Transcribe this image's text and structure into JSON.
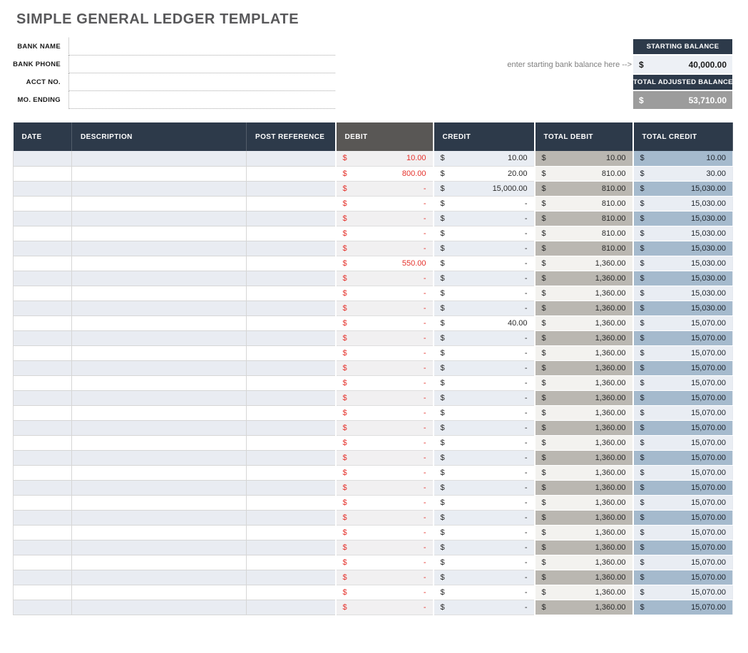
{
  "page": {
    "title": "SIMPLE GENERAL LEDGER TEMPLATE"
  },
  "form": {
    "fields": [
      {
        "label": "BANK NAME",
        "value": ""
      },
      {
        "label": "BANK PHONE",
        "value": ""
      },
      {
        "label": "ACCT NO.",
        "value": ""
      },
      {
        "label": "MO. ENDING",
        "value": ""
      }
    ]
  },
  "balance": {
    "note": "enter starting bank balance here -->",
    "starting": {
      "label": "STARTING BALANCE",
      "currency": "$",
      "value": "40,000.00"
    },
    "adjusted": {
      "label": "TOTAL ADJUSTED BALANCE",
      "currency": "$",
      "value": "53,710.00"
    }
  },
  "colors": {
    "header_navy": "#2d3a4a",
    "header_gray": "#595755",
    "debit_red": "#e5312b",
    "row_tint": "#e9ecf2",
    "total_debit_odd": "#bab7b1",
    "total_debit_even": "#f3f2ef",
    "total_credit_odd": "#a5bacd",
    "total_credit_even": "#e9edf3",
    "adjusted_gray": "#9c9c9c",
    "starting_bg": "#edf0f5"
  },
  "table": {
    "headers": [
      "DATE",
      "DESCRIPTION",
      "POST REFERENCE",
      "DEBIT",
      "CREDIT",
      "TOTAL DEBIT",
      "TOTAL CREDIT"
    ],
    "currency": "$",
    "rows": [
      {
        "date": "",
        "description": "",
        "post_reference": "",
        "debit": "10.00",
        "credit": "10.00",
        "total_debit": "10.00",
        "total_credit": "10.00"
      },
      {
        "date": "",
        "description": "",
        "post_reference": "",
        "debit": "800.00",
        "credit": "20.00",
        "total_debit": "810.00",
        "total_credit": "30.00"
      },
      {
        "date": "",
        "description": "",
        "post_reference": "",
        "debit": "-",
        "credit": "15,000.00",
        "total_debit": "810.00",
        "total_credit": "15,030.00"
      },
      {
        "date": "",
        "description": "",
        "post_reference": "",
        "debit": "-",
        "credit": "-",
        "total_debit": "810.00",
        "total_credit": "15,030.00"
      },
      {
        "date": "",
        "description": "",
        "post_reference": "",
        "debit": "-",
        "credit": "-",
        "total_debit": "810.00",
        "total_credit": "15,030.00"
      },
      {
        "date": "",
        "description": "",
        "post_reference": "",
        "debit": "-",
        "credit": "-",
        "total_debit": "810.00",
        "total_credit": "15,030.00"
      },
      {
        "date": "",
        "description": "",
        "post_reference": "",
        "debit": "-",
        "credit": "-",
        "total_debit": "810.00",
        "total_credit": "15,030.00"
      },
      {
        "date": "",
        "description": "",
        "post_reference": "",
        "debit": "550.00",
        "credit": "-",
        "total_debit": "1,360.00",
        "total_credit": "15,030.00"
      },
      {
        "date": "",
        "description": "",
        "post_reference": "",
        "debit": "-",
        "credit": "-",
        "total_debit": "1,360.00",
        "total_credit": "15,030.00"
      },
      {
        "date": "",
        "description": "",
        "post_reference": "",
        "debit": "-",
        "credit": "-",
        "total_debit": "1,360.00",
        "total_credit": "15,030.00"
      },
      {
        "date": "",
        "description": "",
        "post_reference": "",
        "debit": "-",
        "credit": "-",
        "total_debit": "1,360.00",
        "total_credit": "15,030.00"
      },
      {
        "date": "",
        "description": "",
        "post_reference": "",
        "debit": "-",
        "credit": "40.00",
        "total_debit": "1,360.00",
        "total_credit": "15,070.00"
      },
      {
        "date": "",
        "description": "",
        "post_reference": "",
        "debit": "-",
        "credit": "-",
        "total_debit": "1,360.00",
        "total_credit": "15,070.00"
      },
      {
        "date": "",
        "description": "",
        "post_reference": "",
        "debit": "-",
        "credit": "-",
        "total_debit": "1,360.00",
        "total_credit": "15,070.00"
      },
      {
        "date": "",
        "description": "",
        "post_reference": "",
        "debit": "-",
        "credit": "-",
        "total_debit": "1,360.00",
        "total_credit": "15,070.00"
      },
      {
        "date": "",
        "description": "",
        "post_reference": "",
        "debit": "-",
        "credit": "-",
        "total_debit": "1,360.00",
        "total_credit": "15,070.00"
      },
      {
        "date": "",
        "description": "",
        "post_reference": "",
        "debit": "-",
        "credit": "-",
        "total_debit": "1,360.00",
        "total_credit": "15,070.00"
      },
      {
        "date": "",
        "description": "",
        "post_reference": "",
        "debit": "-",
        "credit": "-",
        "total_debit": "1,360.00",
        "total_credit": "15,070.00"
      },
      {
        "date": "",
        "description": "",
        "post_reference": "",
        "debit": "-",
        "credit": "-",
        "total_debit": "1,360.00",
        "total_credit": "15,070.00"
      },
      {
        "date": "",
        "description": "",
        "post_reference": "",
        "debit": "-",
        "credit": "-",
        "total_debit": "1,360.00",
        "total_credit": "15,070.00"
      },
      {
        "date": "",
        "description": "",
        "post_reference": "",
        "debit": "-",
        "credit": "-",
        "total_debit": "1,360.00",
        "total_credit": "15,070.00"
      },
      {
        "date": "",
        "description": "",
        "post_reference": "",
        "debit": "-",
        "credit": "-",
        "total_debit": "1,360.00",
        "total_credit": "15,070.00"
      },
      {
        "date": "",
        "description": "",
        "post_reference": "",
        "debit": "-",
        "credit": "-",
        "total_debit": "1,360.00",
        "total_credit": "15,070.00"
      },
      {
        "date": "",
        "description": "",
        "post_reference": "",
        "debit": "-",
        "credit": "-",
        "total_debit": "1,360.00",
        "total_credit": "15,070.00"
      },
      {
        "date": "",
        "description": "",
        "post_reference": "",
        "debit": "-",
        "credit": "-",
        "total_debit": "1,360.00",
        "total_credit": "15,070.00"
      },
      {
        "date": "",
        "description": "",
        "post_reference": "",
        "debit": "-",
        "credit": "-",
        "total_debit": "1,360.00",
        "total_credit": "15,070.00"
      },
      {
        "date": "",
        "description": "",
        "post_reference": "",
        "debit": "-",
        "credit": "-",
        "total_debit": "1,360.00",
        "total_credit": "15,070.00"
      },
      {
        "date": "",
        "description": "",
        "post_reference": "",
        "debit": "-",
        "credit": "-",
        "total_debit": "1,360.00",
        "total_credit": "15,070.00"
      },
      {
        "date": "",
        "description": "",
        "post_reference": "",
        "debit": "-",
        "credit": "-",
        "total_debit": "1,360.00",
        "total_credit": "15,070.00"
      },
      {
        "date": "",
        "description": "",
        "post_reference": "",
        "debit": "-",
        "credit": "-",
        "total_debit": "1,360.00",
        "total_credit": "15,070.00"
      },
      {
        "date": "",
        "description": "",
        "post_reference": "",
        "debit": "-",
        "credit": "-",
        "total_debit": "1,360.00",
        "total_credit": "15,070.00"
      }
    ]
  }
}
